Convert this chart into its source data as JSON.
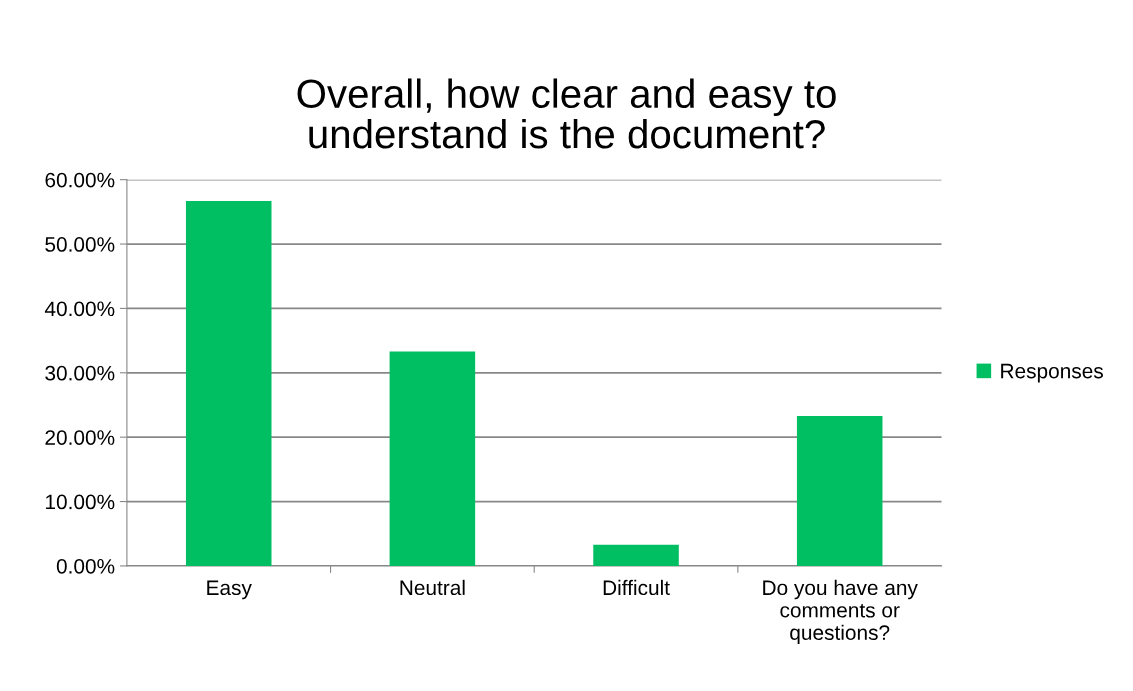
{
  "chart_data": {
    "type": "bar",
    "title": "Overall, how clear and easy to understand is the document?",
    "categories": [
      "Easy",
      "Neutral",
      "Difficult",
      "Do you have any comments or questions?"
    ],
    "series": [
      {
        "name": "Responses",
        "color": "#00bf63",
        "values": [
          56.7,
          33.3,
          3.3,
          23.3
        ]
      }
    ],
    "ylim": [
      0,
      60
    ],
    "yticks": [
      {
        "value": 0,
        "label": "0.00%"
      },
      {
        "value": 10,
        "label": "10.00%"
      },
      {
        "value": 20,
        "label": "20.00%"
      },
      {
        "value": 30,
        "label": "30.00%"
      },
      {
        "value": 40,
        "label": "40.00%"
      },
      {
        "value": 50,
        "label": "50.00%"
      },
      {
        "value": 60,
        "label": "60.00%"
      }
    ],
    "grid": "y",
    "legend": "right"
  }
}
